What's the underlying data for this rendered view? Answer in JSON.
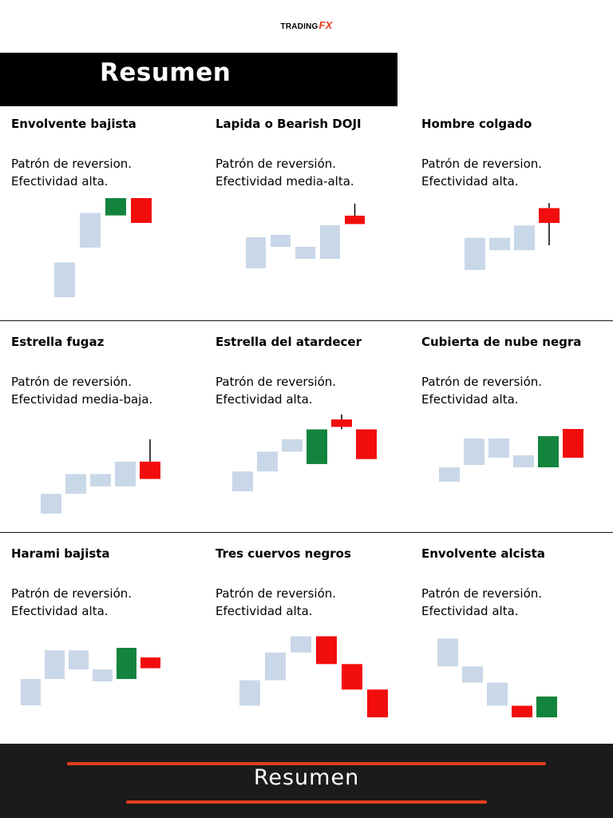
{
  "logo": {
    "trading": "TRADING",
    "fx": "FX",
    "accent_color": "#e53d1f"
  },
  "header": {
    "title": "Resumen"
  },
  "colors": {
    "neutral": "#c9d8e8",
    "bullish": "#13843e",
    "bearish": "#f20d0d",
    "wick": "#000000"
  },
  "patterns": [
    {
      "title": "Envolvente bajista",
      "line1": "Patrón de reversion.",
      "line2": "Efectividad alta.",
      "candles": [
        {
          "type": "neutral",
          "bottom": 0.0,
          "top": 1.4
        },
        {
          "type": "neutral",
          "bottom": 2.0,
          "top": 3.4
        },
        {
          "type": "bullish",
          "bottom": 3.3,
          "top": 4.0
        },
        {
          "type": "bearish",
          "bottom": 3.0,
          "top": 4.0
        }
      ]
    },
    {
      "title": "Lapida o Bearish DOJI",
      "line1": "Patrón de reversión.",
      "line2": "Efectividad media-alta.",
      "candles": [
        {
          "type": "neutral",
          "bottom": 0.0,
          "top": 1.3
        },
        {
          "type": "neutral",
          "bottom": 0.9,
          "top": 1.4
        },
        {
          "type": "neutral",
          "bottom": 0.4,
          "top": 0.9
        },
        {
          "type": "neutral",
          "bottom": 0.4,
          "top": 1.8
        },
        {
          "type": "bearish",
          "bottom": 1.85,
          "top": 2.2,
          "wick_top": 2.7
        }
      ]
    },
    {
      "title": "Hombre colgado",
      "line1": "Patrón de reversion.",
      "line2": "Efectividad alta.",
      "candles": [
        {
          "type": "neutral",
          "bottom": 0.0,
          "top": 1.3
        },
        {
          "type": "neutral",
          "bottom": 0.8,
          "top": 1.3
        },
        {
          "type": "neutral",
          "bottom": 0.8,
          "top": 1.8
        },
        {
          "type": "bearish",
          "bottom": 1.9,
          "top": 2.5,
          "wick_top": 2.7,
          "wick_bottom": 1.0
        }
      ]
    },
    {
      "title": "Estrella fugaz",
      "line1": "Patrón de reversión.",
      "line2": "Efectividad media-baja.",
      "candles": [
        {
          "type": "neutral",
          "bottom": 0.0,
          "top": 0.8
        },
        {
          "type": "neutral",
          "bottom": 0.8,
          "top": 1.6
        },
        {
          "type": "neutral",
          "bottom": 1.1,
          "top": 1.6
        },
        {
          "type": "neutral",
          "bottom": 1.1,
          "top": 2.1
        },
        {
          "type": "bearish",
          "bottom": 1.4,
          "top": 2.1,
          "wick_top": 3.0
        }
      ]
    },
    {
      "title": "Estrella del atardecer",
      "line1": "Patrón de reversión.",
      "line2": "Efectividad alta.",
      "candles": [
        {
          "type": "neutral",
          "bottom": 0.0,
          "top": 0.8
        },
        {
          "type": "neutral",
          "bottom": 0.8,
          "top": 1.6
        },
        {
          "type": "neutral",
          "bottom": 1.6,
          "top": 2.1
        },
        {
          "type": "bullish",
          "bottom": 1.1,
          "top": 2.5
        },
        {
          "type": "bearish",
          "bottom": 2.6,
          "top": 2.9,
          "wick_top": 3.1,
          "wick_bottom": 2.5
        },
        {
          "type": "bearish",
          "bottom": 1.3,
          "top": 2.5
        }
      ]
    },
    {
      "title": "Cubierta de nube negra",
      "line1": "Patrón de reversión.",
      "line2": "Efectividad alta.",
      "candles": [
        {
          "type": "neutral",
          "bottom": 0.0,
          "top": 0.6
        },
        {
          "type": "neutral",
          "bottom": 0.7,
          "top": 1.8
        },
        {
          "type": "neutral",
          "bottom": 1.0,
          "top": 1.8
        },
        {
          "type": "neutral",
          "bottom": 0.6,
          "top": 1.1
        },
        {
          "type": "bullish",
          "bottom": 0.6,
          "top": 1.9
        },
        {
          "type": "bearish",
          "bottom": 1.0,
          "top": 2.2
        }
      ]
    },
    {
      "title": "Harami bajista",
      "line1": "Patrón de reversión.",
      "line2": "Efectividad alta.",
      "candles": [
        {
          "type": "neutral",
          "bottom": 0.0,
          "top": 1.1
        },
        {
          "type": "neutral",
          "bottom": 1.1,
          "top": 2.3
        },
        {
          "type": "neutral",
          "bottom": 1.5,
          "top": 2.3
        },
        {
          "type": "neutral",
          "bottom": 1.0,
          "top": 1.5
        },
        {
          "type": "bullish",
          "bottom": 1.1,
          "top": 2.4
        },
        {
          "type": "bearish",
          "bottom": 1.55,
          "top": 2.0
        }
      ]
    },
    {
      "title": "Tres cuervos negros",
      "line1": "Patrón de reversión.",
      "line2": "Efectividad alta.",
      "candles": [
        {
          "type": "neutral",
          "bottom": 0.5,
          "top": 1.6
        },
        {
          "type": "neutral",
          "bottom": 1.6,
          "top": 2.8
        },
        {
          "type": "neutral",
          "bottom": 2.8,
          "top": 3.5
        },
        {
          "type": "bearish",
          "bottom": 2.3,
          "top": 3.5
        },
        {
          "type": "bearish",
          "bottom": 1.2,
          "top": 2.3
        },
        {
          "type": "bearish",
          "bottom": 0.0,
          "top": 1.2
        }
      ]
    },
    {
      "title": "Envolvente alcista",
      "line1": "Patrón de reversión.",
      "line2": "Efectividad alta.",
      "candles": [
        {
          "type": "neutral",
          "bottom": 2.2,
          "top": 3.4
        },
        {
          "type": "neutral",
          "bottom": 1.5,
          "top": 2.2
        },
        {
          "type": "neutral",
          "bottom": 0.5,
          "top": 1.5
        },
        {
          "type": "bearish",
          "bottom": 0.0,
          "top": 0.5
        },
        {
          "type": "bullish",
          "bottom": 0.0,
          "top": 0.9
        }
      ]
    }
  ],
  "footer": {
    "title": "Resumen"
  }
}
